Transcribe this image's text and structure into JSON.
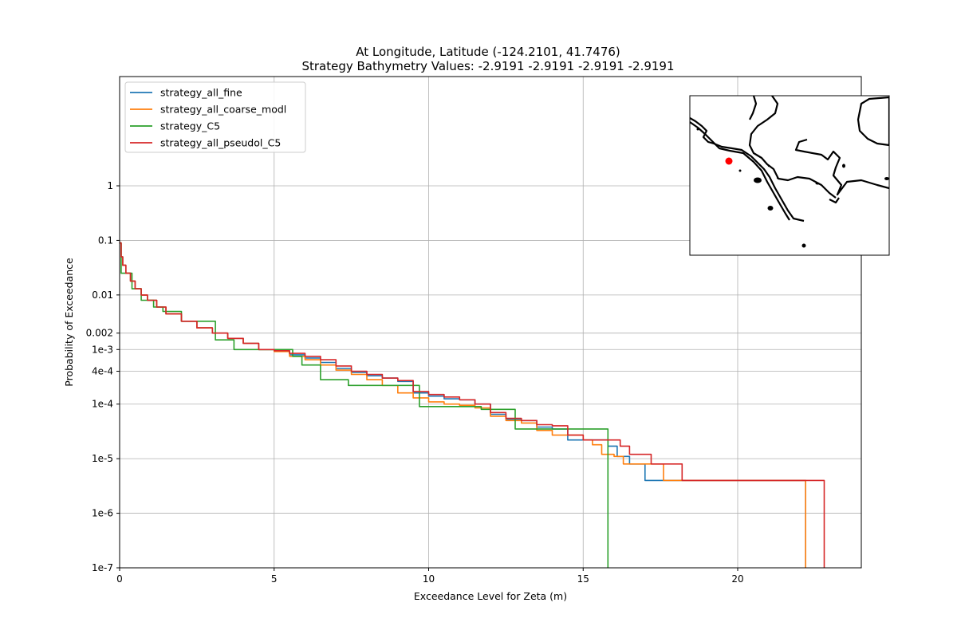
{
  "chart_data": {
    "type": "line",
    "title_line1": "At Longitude, Latitude (-124.2101,  41.7476)",
    "title_line2": "Strategy Bathymetry Values:   -2.9191   -2.9191   -2.9191   -2.9191",
    "xlabel": "Exceedance Level for Zeta (m)",
    "ylabel": "Probability of Exceedance",
    "xlim": [
      0,
      24
    ],
    "ylim": [
      1e-07,
      50
    ],
    "y_scale": "log",
    "grid": true,
    "legend_position": "top-left",
    "x_ticks": [
      0,
      5,
      10,
      15,
      20
    ],
    "x_tick_labels": [
      "0",
      "5",
      "10",
      "15",
      "20"
    ],
    "y_ticks": [
      1,
      0.1,
      0.01,
      0.002,
      0.001,
      0.0004,
      0.0001,
      1e-05,
      1e-06,
      1e-07
    ],
    "y_tick_labels": [
      "1",
      "0.1",
      "0.01",
      "0.002",
      "1e-3",
      "4e-4",
      "1e-4",
      "1e-5",
      "1e-6",
      "1e-7"
    ],
    "series": [
      {
        "name": "strategy_all_fine",
        "color": "#1f77b4",
        "x": [
          0,
          0.05,
          0.1,
          0.2,
          0.35,
          0.5,
          0.7,
          0.9,
          1.2,
          1.5,
          2.0,
          2.5,
          3.0,
          3.5,
          4.0,
          4.5,
          5.0,
          5.5,
          6.0,
          6.5,
          7.0,
          7.5,
          8.0,
          8.5,
          9.0,
          9.5,
          10.0,
          10.5,
          11.0,
          11.5,
          12.0,
          12.5,
          13.0,
          13.5,
          14.0,
          14.5,
          15.0,
          15.5,
          15.8,
          16.1,
          16.5,
          17.0,
          17.5,
          22.2,
          22.2
        ],
        "y": [
          0.09,
          0.05,
          0.035,
          0.025,
          0.018,
          0.013,
          0.01,
          0.008,
          0.006,
          0.0045,
          0.0033,
          0.0025,
          0.002,
          0.0016,
          0.0013,
          0.001,
          0.00095,
          0.0008,
          0.0007,
          0.00058,
          0.00045,
          0.00038,
          0.00033,
          0.0003,
          0.00026,
          0.00016,
          0.00014,
          0.000125,
          0.00012,
          0.0001,
          6.5e-05,
          5.3e-05,
          5e-05,
          3.8e-05,
          3.5e-05,
          2.2e-05,
          2.2e-05,
          2.2e-05,
          1.7e-05,
          1.1e-05,
          8e-06,
          4e-06,
          4e-06,
          4e-06,
          1e-07
        ]
      },
      {
        "name": "strategy_all_coarse_modl",
        "color": "#ff7f0e",
        "x": [
          0,
          0.05,
          0.1,
          0.2,
          0.35,
          0.5,
          0.7,
          0.9,
          1.2,
          1.5,
          2.0,
          2.5,
          3.0,
          3.5,
          4.0,
          4.5,
          5.0,
          5.5,
          6.0,
          6.5,
          7.0,
          7.5,
          8.0,
          8.5,
          9.0,
          9.5,
          10.0,
          10.5,
          11.0,
          11.5,
          12.0,
          12.5,
          13.0,
          13.5,
          14.0,
          14.5,
          15.0,
          15.3,
          15.6,
          16.0,
          16.3,
          16.6,
          17.0,
          17.6,
          22.2,
          22.2
        ],
        "y": [
          0.09,
          0.05,
          0.035,
          0.025,
          0.018,
          0.013,
          0.01,
          0.008,
          0.006,
          0.0045,
          0.0033,
          0.0025,
          0.002,
          0.0016,
          0.0013,
          0.001,
          0.00092,
          0.00075,
          0.00065,
          0.00052,
          0.00042,
          0.00035,
          0.00028,
          0.00022,
          0.00016,
          0.00013,
          0.00011,
          0.0001,
          9.5e-05,
          8.5e-05,
          6e-05,
          5e-05,
          4.5e-05,
          3.3e-05,
          2.7e-05,
          2.7e-05,
          2.2e-05,
          1.8e-05,
          1.2e-05,
          1.1e-05,
          8e-06,
          8e-06,
          8e-06,
          4e-06,
          4e-06,
          1e-07
        ]
      },
      {
        "name": "strategy_C5",
        "color": "#2ca02c",
        "x": [
          0,
          0.05,
          0.05,
          0.4,
          0.4,
          0.7,
          0.7,
          1.1,
          1.1,
          1.4,
          1.4,
          2.0,
          2.0,
          3.1,
          3.1,
          3.7,
          3.7,
          5.6,
          5.6,
          5.9,
          5.9,
          6.5,
          6.5,
          7.4,
          7.4,
          9.7,
          9.7,
          11.7,
          11.7,
          12.8,
          12.8,
          15.8,
          15.8
        ],
        "y": [
          0.09,
          0.09,
          0.025,
          0.025,
          0.013,
          0.013,
          0.008,
          0.008,
          0.006,
          0.006,
          0.005,
          0.005,
          0.0033,
          0.0033,
          0.0015,
          0.0015,
          0.001,
          0.001,
          0.00075,
          0.00075,
          0.00052,
          0.00052,
          0.00028,
          0.00028,
          0.00022,
          0.00022,
          9e-05,
          9e-05,
          8e-05,
          8e-05,
          3.5e-05,
          2.7e-05,
          1e-07
        ]
      },
      {
        "name": "strategy_all_pseudol_C5",
        "color": "#d62728",
        "x": [
          0,
          0.05,
          0.1,
          0.2,
          0.35,
          0.5,
          0.7,
          0.9,
          1.2,
          1.5,
          2.0,
          2.5,
          3.0,
          3.5,
          4.0,
          4.5,
          5.0,
          5.5,
          6.0,
          6.5,
          7.0,
          7.5,
          8.0,
          8.5,
          9.0,
          9.5,
          10.0,
          10.5,
          11.0,
          11.5,
          12.0,
          12.5,
          13.0,
          13.5,
          14.0,
          14.5,
          15.0,
          15.5,
          15.8,
          16.2,
          16.5,
          17.0,
          17.2,
          18.0,
          18.2,
          22.8,
          22.8
        ],
        "y": [
          0.09,
          0.05,
          0.035,
          0.025,
          0.018,
          0.013,
          0.01,
          0.008,
          0.006,
          0.0045,
          0.0033,
          0.0025,
          0.002,
          0.0016,
          0.0013,
          0.001,
          0.00095,
          0.00085,
          0.00075,
          0.00065,
          0.0005,
          0.0004,
          0.00035,
          0.0003,
          0.00027,
          0.00017,
          0.00015,
          0.000135,
          0.00012,
          0.0001,
          7e-05,
          5.5e-05,
          5e-05,
          4.2e-05,
          4e-05,
          2.7e-05,
          2.2e-05,
          2.2e-05,
          2.2e-05,
          1.7e-05,
          1.2e-05,
          1.2e-05,
          8e-06,
          8e-06,
          4e-06,
          4e-06,
          1e-07
        ]
      }
    ],
    "inset_map": {
      "marker_color": "#ff0000"
    }
  }
}
